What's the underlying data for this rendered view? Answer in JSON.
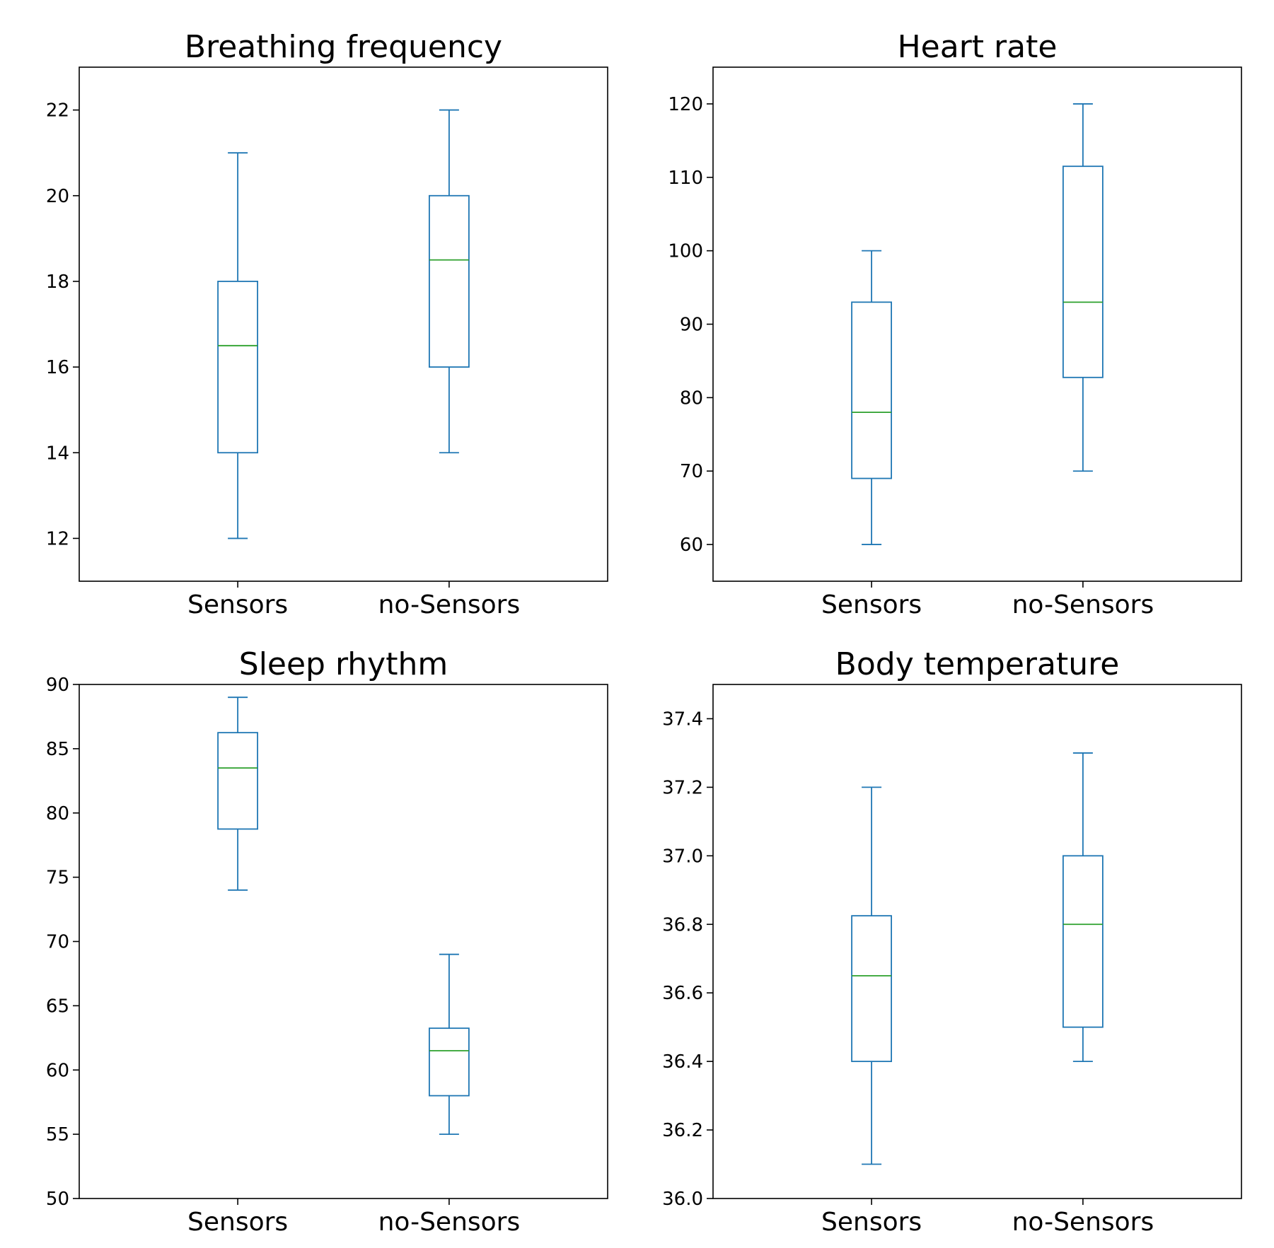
{
  "colors": {
    "box": "#1f77b4",
    "median": "#2ca02c",
    "frame": "#000000"
  },
  "chart_data": [
    {
      "type": "box",
      "title": "Breathing frequency",
      "categories": [
        "Sensors",
        "no-Sensors"
      ],
      "ylim": [
        11,
        23
      ],
      "yticks": [
        12,
        14,
        16,
        18,
        20,
        22
      ],
      "ytick_labels": [
        "12",
        "14",
        "16",
        "18",
        "20",
        "22"
      ],
      "series": [
        {
          "name": "Sensors",
          "whisker_low": 12,
          "q1": 14,
          "median": 16.5,
          "q3": 18,
          "whisker_high": 21
        },
        {
          "name": "no-Sensors",
          "whisker_low": 14,
          "q1": 16,
          "median": 18.5,
          "q3": 20,
          "whisker_high": 22
        }
      ]
    },
    {
      "type": "box",
      "title": "Heart rate",
      "categories": [
        "Sensors",
        "no-Sensors"
      ],
      "ylim": [
        55,
        125
      ],
      "yticks": [
        60,
        70,
        80,
        90,
        100,
        110,
        120
      ],
      "ytick_labels": [
        "60",
        "70",
        "80",
        "90",
        "100",
        "110",
        "120"
      ],
      "series": [
        {
          "name": "Sensors",
          "whisker_low": 60,
          "q1": 69,
          "median": 78,
          "q3": 93,
          "whisker_high": 100
        },
        {
          "name": "no-Sensors",
          "whisker_low": 70,
          "q1": 82.75,
          "median": 93,
          "q3": 111.5,
          "whisker_high": 120
        }
      ]
    },
    {
      "type": "box",
      "title": "Sleep rhythm",
      "categories": [
        "Sensors",
        "no-Sensors"
      ],
      "ylim": [
        50,
        90
      ],
      "yticks": [
        50,
        55,
        60,
        65,
        70,
        75,
        80,
        85,
        90
      ],
      "ytick_labels": [
        "50",
        "55",
        "60",
        "65",
        "70",
        "75",
        "80",
        "85",
        "90"
      ],
      "series": [
        {
          "name": "Sensors",
          "whisker_low": 74,
          "q1": 78.75,
          "median": 83.5,
          "q3": 86.25,
          "whisker_high": 89
        },
        {
          "name": "no-Sensors",
          "whisker_low": 55,
          "q1": 58,
          "median": 61.5,
          "q3": 63.25,
          "whisker_high": 69
        }
      ]
    },
    {
      "type": "box",
      "title": "Body temperature",
      "categories": [
        "Sensors",
        "no-Sensors"
      ],
      "ylim": [
        36.0,
        37.5
      ],
      "yticks": [
        36.0,
        36.2,
        36.4,
        36.6,
        36.8,
        37.0,
        37.2,
        37.4
      ],
      "ytick_labels": [
        "36.0",
        "36.2",
        "36.4",
        "36.6",
        "36.8",
        "37.0",
        "37.2",
        "37.4"
      ],
      "series": [
        {
          "name": "Sensors",
          "whisker_low": 36.1,
          "q1": 36.4,
          "median": 36.65,
          "q3": 36.825,
          "whisker_high": 37.2
        },
        {
          "name": "no-Sensors",
          "whisker_low": 36.4,
          "q1": 36.5,
          "median": 36.8,
          "q3": 37.0,
          "whisker_high": 37.3
        }
      ]
    }
  ]
}
